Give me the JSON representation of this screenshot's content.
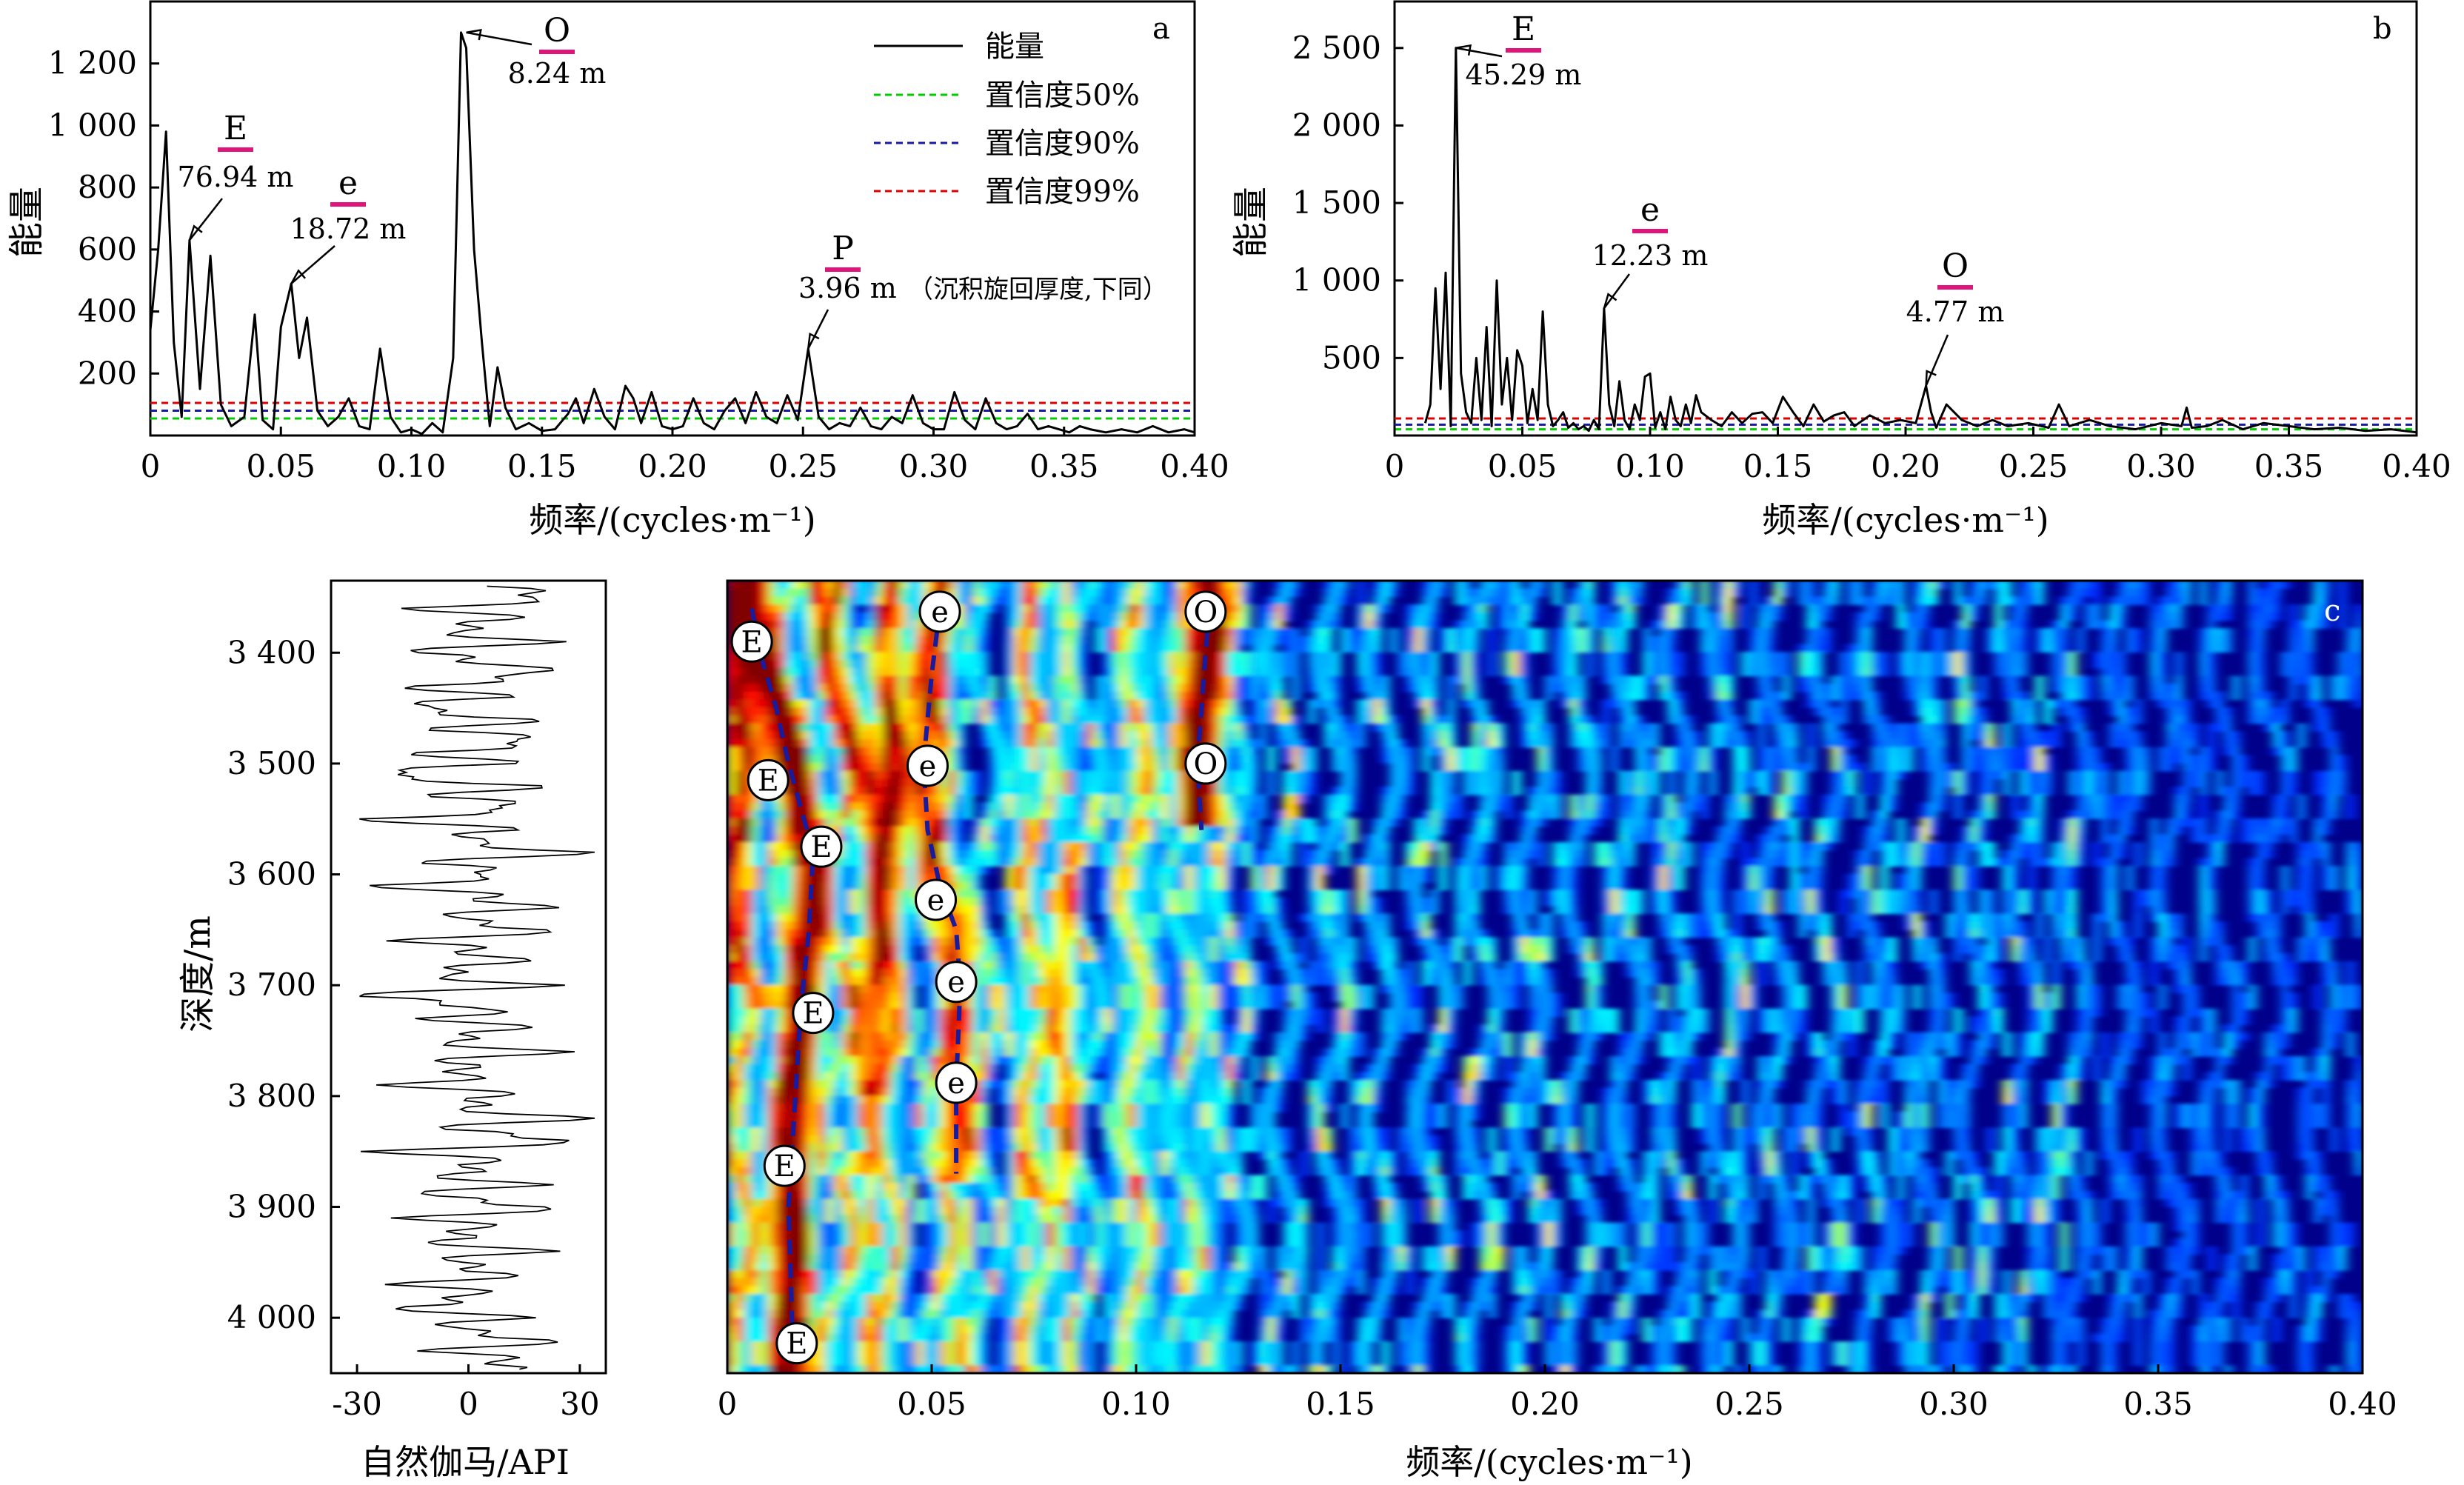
{
  "figure": {
    "panel_a_letter": "a",
    "panel_b_letter": "b",
    "panel_c_letter": "c"
  },
  "chart_data": [
    {
      "panel": "a",
      "type": "line",
      "title": "",
      "xlabel": "频率/(cycles·m⁻¹)",
      "ylabel": "能量",
      "xlim": [
        0,
        0.4
      ],
      "ylim": [
        0,
        1400
      ],
      "xticks": [
        0,
        0.05,
        0.1,
        0.15,
        0.2,
        0.25,
        0.3,
        0.35,
        0.4
      ],
      "xtick_labels": [
        "0",
        "0.05",
        "0.10",
        "0.15",
        "0.20",
        "0.25",
        "0.30",
        "0.35",
        "0.40"
      ],
      "yticks": [
        200,
        400,
        600,
        800,
        1000,
        1200
      ],
      "ytick_labels": [
        "200",
        "400",
        "600",
        "800",
        "1 000",
        "1 200"
      ],
      "grid": false,
      "legend_position": "top-right",
      "series": [
        {
          "name": "能量",
          "color": "#000000",
          "style": "solid",
          "x": [
            0.0,
            0.003,
            0.006,
            0.009,
            0.012,
            0.015,
            0.019,
            0.023,
            0.027,
            0.031,
            0.036,
            0.04,
            0.043,
            0.047,
            0.05,
            0.054,
            0.057,
            0.06,
            0.064,
            0.068,
            0.072,
            0.076,
            0.08,
            0.084,
            0.088,
            0.092,
            0.096,
            0.1,
            0.104,
            0.108,
            0.112,
            0.116,
            0.119,
            0.121,
            0.124,
            0.127,
            0.13,
            0.133,
            0.136,
            0.14,
            0.145,
            0.15,
            0.155,
            0.16,
            0.163,
            0.166,
            0.17,
            0.174,
            0.178,
            0.182,
            0.185,
            0.188,
            0.192,
            0.196,
            0.2,
            0.204,
            0.208,
            0.212,
            0.216,
            0.22,
            0.224,
            0.228,
            0.232,
            0.236,
            0.24,
            0.244,
            0.248,
            0.252,
            0.256,
            0.26,
            0.264,
            0.268,
            0.272,
            0.276,
            0.28,
            0.284,
            0.288,
            0.292,
            0.296,
            0.3,
            0.304,
            0.308,
            0.312,
            0.316,
            0.32,
            0.324,
            0.328,
            0.332,
            0.336,
            0.34,
            0.344,
            0.348,
            0.352,
            0.356,
            0.36,
            0.366,
            0.372,
            0.378,
            0.384,
            0.39,
            0.396,
            0.4
          ],
          "y": [
            340,
            600,
            980,
            300,
            60,
            630,
            150,
            580,
            100,
            30,
            60,
            390,
            50,
            20,
            350,
            490,
            250,
            380,
            80,
            30,
            60,
            120,
            30,
            20,
            280,
            60,
            10,
            20,
            5,
            40,
            10,
            250,
            1300,
            1250,
            600,
            300,
            30,
            220,
            90,
            20,
            40,
            15,
            20,
            70,
            120,
            40,
            150,
            60,
            20,
            160,
            120,
            40,
            140,
            30,
            20,
            30,
            120,
            40,
            20,
            80,
            120,
            40,
            140,
            60,
            40,
            130,
            50,
            280,
            60,
            20,
            40,
            30,
            90,
            30,
            20,
            60,
            40,
            130,
            40,
            20,
            20,
            140,
            50,
            20,
            120,
            40,
            20,
            30,
            70,
            20,
            30,
            20,
            10,
            30,
            20,
            10,
            20,
            10,
            30,
            10,
            20,
            10
          ]
        },
        {
          "name": "置信度50%",
          "color": "#00cc00",
          "style": "dashed",
          "x": [
            0,
            0.4
          ],
          "y": [
            55,
            55
          ]
        },
        {
          "name": "置信度90%",
          "color": "#1a1aa0",
          "style": "dashed",
          "x": [
            0,
            0.4
          ],
          "y": [
            80,
            80
          ]
        },
        {
          "name": "置信度99%",
          "color": "#e00000",
          "style": "dashed",
          "x": [
            0,
            0.4
          ],
          "y": [
            105,
            105
          ]
        }
      ],
      "annotations": [
        {
          "label": "O",
          "value": "8.24 m",
          "x": 0.121,
          "y": 1300
        },
        {
          "label": "E",
          "value": "76.94 m",
          "x": 0.015,
          "y": 630
        },
        {
          "label": "e",
          "value": "18.72 m",
          "x": 0.054,
          "y": 490
        },
        {
          "label": "P",
          "value": "3.96 m",
          "note": "（沉积旋回厚度,下同）",
          "x": 0.252,
          "y": 280
        }
      ]
    },
    {
      "panel": "b",
      "type": "line",
      "title": "",
      "xlabel": "频率/(cycles·m⁻¹)",
      "ylabel": "能量",
      "xlim": [
        0,
        0.4
      ],
      "ylim": [
        0,
        2800
      ],
      "xticks": [
        0,
        0.05,
        0.1,
        0.15,
        0.2,
        0.25,
        0.3,
        0.35,
        0.4
      ],
      "xtick_labels": [
        "0",
        "0.05",
        "0.10",
        "0.15",
        "0.20",
        "0.25",
        "0.30",
        "0.35",
        "0.40"
      ],
      "yticks": [
        500,
        1000,
        1500,
        2000,
        2500
      ],
      "ytick_labels": [
        "500",
        "1 000",
        "1 500",
        "2 000",
        "2 500"
      ],
      "grid": false,
      "series": [
        {
          "name": "能量",
          "color": "#000000",
          "style": "solid",
          "x": [
            0.012,
            0.014,
            0.016,
            0.018,
            0.02,
            0.022,
            0.024,
            0.026,
            0.028,
            0.03,
            0.032,
            0.034,
            0.036,
            0.038,
            0.04,
            0.042,
            0.044,
            0.046,
            0.048,
            0.05,
            0.052,
            0.054,
            0.056,
            0.058,
            0.06,
            0.062,
            0.064,
            0.066,
            0.068,
            0.07,
            0.072,
            0.074,
            0.076,
            0.078,
            0.08,
            0.082,
            0.084,
            0.086,
            0.088,
            0.09,
            0.092,
            0.094,
            0.096,
            0.098,
            0.1,
            0.102,
            0.104,
            0.106,
            0.108,
            0.11,
            0.112,
            0.114,
            0.116,
            0.118,
            0.12,
            0.124,
            0.128,
            0.132,
            0.136,
            0.14,
            0.144,
            0.148,
            0.152,
            0.156,
            0.16,
            0.164,
            0.168,
            0.172,
            0.176,
            0.18,
            0.186,
            0.192,
            0.198,
            0.204,
            0.208,
            0.21,
            0.212,
            0.216,
            0.222,
            0.228,
            0.234,
            0.24,
            0.248,
            0.256,
            0.26,
            0.264,
            0.272,
            0.28,
            0.29,
            0.3,
            0.308,
            0.31,
            0.312,
            0.318,
            0.324,
            0.332,
            0.34,
            0.35,
            0.36,
            0.37,
            0.38,
            0.39,
            0.4
          ],
          "y": [
            80,
            200,
            950,
            300,
            1050,
            60,
            2500,
            400,
            150,
            80,
            500,
            100,
            700,
            60,
            1000,
            200,
            500,
            100,
            550,
            450,
            80,
            300,
            100,
            800,
            200,
            60,
            100,
            150,
            50,
            80,
            40,
            60,
            30,
            100,
            40,
            820,
            200,
            60,
            350,
            100,
            40,
            200,
            100,
            380,
            400,
            50,
            150,
            40,
            250,
            100,
            60,
            200,
            80,
            260,
            150,
            100,
            60,
            150,
            80,
            140,
            150,
            80,
            250,
            150,
            60,
            200,
            90,
            130,
            150,
            60,
            130,
            80,
            100,
            80,
            320,
            150,
            50,
            200,
            100,
            60,
            100,
            60,
            80,
            50,
            200,
            60,
            100,
            60,
            40,
            80,
            60,
            180,
            50,
            60,
            100,
            40,
            80,
            60,
            40,
            50,
            30,
            40,
            20
          ]
        },
        {
          "name": "置信度50%",
          "color": "#00cc00",
          "style": "dashed",
          "x": [
            0,
            0.4
          ],
          "y": [
            40,
            40
          ]
        },
        {
          "name": "置信度90%",
          "color": "#1a1aa0",
          "style": "dashed",
          "x": [
            0,
            0.4
          ],
          "y": [
            70,
            70
          ]
        },
        {
          "name": "置信度99%",
          "color": "#e00000",
          "style": "dashed",
          "x": [
            0,
            0.4
          ],
          "y": [
            110,
            110
          ]
        }
      ],
      "annotations": [
        {
          "label": "E",
          "value": "45.29 m",
          "x": 0.024,
          "y": 2500
        },
        {
          "label": "e",
          "value": "12.23 m",
          "x": 0.082,
          "y": 820
        },
        {
          "label": "O",
          "value": "4.77 m",
          "x": 0.208,
          "y": 320
        }
      ]
    },
    {
      "panel": "gr",
      "type": "line",
      "title": "",
      "xlabel": "自然伽马/API",
      "ylabel": "深度/m",
      "xlim": [
        -37,
        37
      ],
      "ylim": [
        4050,
        3335
      ],
      "xticks": [
        -30,
        0,
        30
      ],
      "xtick_labels": [
        "-30",
        "0",
        "30"
      ],
      "yticks": [
        3400,
        3500,
        3600,
        3700,
        3800,
        3900,
        4000
      ],
      "ytick_labels": [
        "3 400",
        "3 500",
        "3 600",
        "3 700",
        "3 800",
        "3 900",
        "4 000"
      ],
      "grid": false,
      "series": [
        {
          "name": "",
          "color": "#000000",
          "style": "solid",
          "depth": [
            3340,
            3350,
            3360,
            3370,
            3380,
            3390,
            3400,
            3410,
            3420,
            3430,
            3440,
            3450,
            3460,
            3470,
            3480,
            3490,
            3500,
            3510,
            3520,
            3530,
            3540,
            3550,
            3560,
            3570,
            3580,
            3590,
            3600,
            3610,
            3620,
            3630,
            3640,
            3650,
            3660,
            3670,
            3680,
            3690,
            3700,
            3710,
            3720,
            3730,
            3740,
            3750,
            3760,
            3770,
            3780,
            3790,
            3800,
            3810,
            3820,
            3830,
            3840,
            3850,
            3860,
            3870,
            3880,
            3890,
            3900,
            3910,
            3920,
            3930,
            3940,
            3950,
            3960,
            3970,
            3980,
            3990,
            4000,
            4010,
            4020,
            4030,
            4040,
            4048
          ],
          "gr": [
            5,
            25,
            -10,
            12,
            -8,
            18,
            -15,
            10,
            20,
            -12,
            6,
            -18,
            14,
            -5,
            22,
            -10,
            8,
            -28,
            15,
            -6,
            18,
            -24,
            10,
            -4,
            28,
            -10,
            12,
            -20,
            6,
            16,
            -8,
            22,
            -14,
            4,
            10,
            -12,
            18,
            -30,
            8,
            -6,
            14,
            -10,
            20,
            -8,
            4,
            -16,
            12,
            -6,
            30,
            -10,
            32,
            -20,
            10,
            -8,
            14,
            -14,
            24,
            -12,
            6,
            -10,
            16,
            -8,
            12,
            -14,
            6,
            -18,
            10,
            -8,
            22,
            -6,
            14,
            4
          ]
        }
      ]
    },
    {
      "panel": "c",
      "type": "heatmap",
      "title": "",
      "xlabel": "频率/(cycles·m⁻¹)",
      "xlim": [
        0,
        0.4
      ],
      "ylim": [
        4050,
        3335
      ],
      "xticks": [
        0,
        0.05,
        0.1,
        0.15,
        0.2,
        0.25,
        0.3,
        0.35,
        0.4
      ],
      "xtick_labels": [
        "0",
        "0.05",
        "0.10",
        "0.15",
        "0.20",
        "0.25",
        "0.30",
        "0.35",
        "0.40"
      ],
      "colormap": [
        "#000080",
        "#0000ff",
        "#00a0ff",
        "#00ffff",
        "#ffff00",
        "#ff8000",
        "#ff0000",
        "#800000"
      ],
      "ridges": [
        {
          "label": "E",
          "freq": [
            0.006,
            0.008,
            0.012,
            0.015,
            0.018,
            0.021,
            0.02,
            0.018,
            0.017,
            0.016,
            0.015,
            0.016
          ],
          "depth": [
            3360,
            3400,
            3450,
            3500,
            3540,
            3580,
            3650,
            3720,
            3780,
            3840,
            3900,
            4020
          ]
        },
        {
          "label": "e",
          "freq": [
            0.052,
            0.05,
            0.048,
            0.049,
            0.052,
            0.056,
            0.057,
            0.056,
            0.056
          ],
          "depth": [
            3360,
            3420,
            3500,
            3560,
            3610,
            3650,
            3700,
            3790,
            3870
          ]
        },
        {
          "label": "O",
          "freq": [
            0.118,
            0.117,
            0.116,
            0.115,
            0.116
          ],
          "depth": [
            3360,
            3400,
            3450,
            3500,
            3560
          ]
        }
      ],
      "ridge_labels": [
        {
          "label": "E",
          "freq": 0.006,
          "depth": 3390
        },
        {
          "label": "E",
          "freq": 0.01,
          "depth": 3515
        },
        {
          "label": "E",
          "freq": 0.023,
          "depth": 3575
        },
        {
          "label": "E",
          "freq": 0.021,
          "depth": 3725
        },
        {
          "label": "E",
          "freq": 0.014,
          "depth": 3863
        },
        {
          "label": "E",
          "freq": 0.017,
          "depth": 4023
        },
        {
          "label": "e",
          "freq": 0.052,
          "depth": 3363
        },
        {
          "label": "e",
          "freq": 0.049,
          "depth": 3502
        },
        {
          "label": "e",
          "freq": 0.051,
          "depth": 3623
        },
        {
          "label": "e",
          "freq": 0.056,
          "depth": 3697
        },
        {
          "label": "e",
          "freq": 0.056,
          "depth": 3788
        },
        {
          "label": "O",
          "freq": 0.117,
          "depth": 3363
        },
        {
          "label": "O",
          "freq": 0.117,
          "depth": 3500
        }
      ]
    }
  ]
}
